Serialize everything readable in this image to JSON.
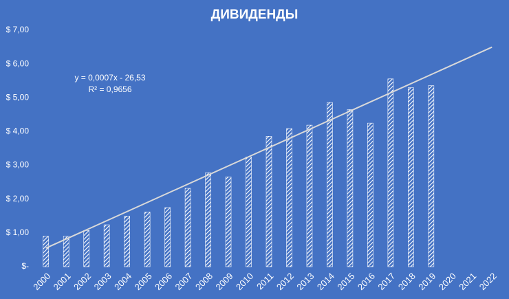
{
  "chart_data": {
    "type": "bar",
    "title": "ДИВИДЕНДЫ",
    "categories": [
      "2000",
      "2001",
      "2002",
      "2003",
      "2004",
      "2005",
      "2006",
      "2007",
      "2008",
      "2009",
      "2010",
      "2011",
      "2012",
      "2013",
      "2014",
      "2015",
      "2016",
      "2017",
      "2018",
      "2019",
      "2020",
      "2021",
      "2022"
    ],
    "values": [
      0.9,
      0.9,
      1.07,
      1.24,
      1.5,
      1.62,
      1.75,
      2.32,
      2.78,
      2.66,
      3.25,
      3.86,
      4.09,
      4.19,
      4.86,
      4.65,
      4.25,
      5.56,
      5.3,
      5.36,
      null,
      null,
      null
    ],
    "color": "#ffffff",
    "background": "#4472c4",
    "ylim": [
      0,
      7
    ],
    "yticks": [
      {
        "value": 0,
        "label": "$-"
      },
      {
        "value": 1,
        "label": "$ 1,00"
      },
      {
        "value": 2,
        "label": "$ 2,00"
      },
      {
        "value": 3,
        "label": "$ 3,00"
      },
      {
        "value": 4,
        "label": "$ 4,00"
      },
      {
        "value": 5,
        "label": "$ 5,00"
      },
      {
        "value": 6,
        "label": "$ 6,00"
      },
      {
        "value": 7,
        "label": "$ 7,00"
      }
    ],
    "grid": false,
    "trendline": {
      "x": [
        "2000",
        "2022"
      ],
      "values": [
        0.55,
        6.5
      ],
      "color": "#d9d9d9",
      "equation": "y = 0,0007x - 26,53",
      "r_squared": "R² = 0,9656"
    }
  }
}
